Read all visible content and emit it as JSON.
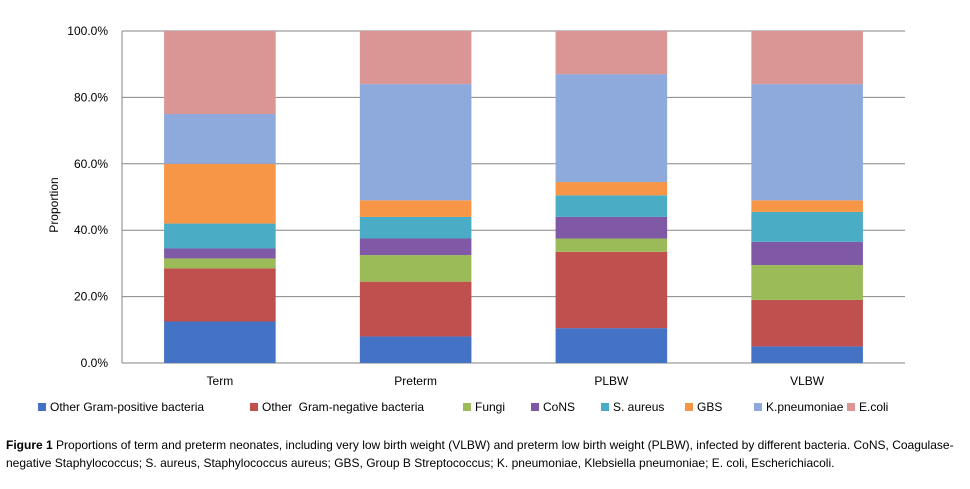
{
  "chart_data": {
    "type": "bar",
    "stacked": true,
    "categories": [
      "Term",
      "Preterm",
      "PLBW",
      "VLBW"
    ],
    "series": [
      {
        "name": "Other Gram-positive bacteria",
        "color": "#4472C4",
        "values": [
          12.5,
          8.0,
          10.5,
          5.0
        ]
      },
      {
        "name": "Other  Gram-negative bacteria",
        "color": "#C0504D",
        "values": [
          16.0,
          16.5,
          23.0,
          14.0
        ]
      },
      {
        "name": "Fungi",
        "color": "#9BBB59",
        "values": [
          3.0,
          8.0,
          4.0,
          10.5
        ]
      },
      {
        "name": "CoNS",
        "color": "#7F58A6",
        "values": [
          3.0,
          5.0,
          6.5,
          7.0
        ]
      },
      {
        "name": "S. aureus",
        "color": "#4BACC6",
        "values": [
          7.5,
          6.5,
          6.5,
          9.0
        ]
      },
      {
        "name": "GBS",
        "color": "#F79646",
        "values": [
          18.0,
          5.0,
          4.0,
          3.5
        ]
      },
      {
        "name": "K.pneumoniae",
        "color": "#8EA9DB",
        "values": [
          15.0,
          35.0,
          32.5,
          35.0
        ]
      },
      {
        "name": "E.coli",
        "color": "#D99694",
        "values": [
          25.0,
          16.0,
          13.0,
          16.0
        ]
      }
    ],
    "ylabel": "Proportion",
    "xlabel": "",
    "ylim": [
      0,
      100
    ],
    "yticks": [
      "0.0%",
      "20.0%",
      "40.0%",
      "60.0%",
      "80.0%",
      "100.0%"
    ],
    "grid": true,
    "legend_position": "bottom"
  },
  "caption": {
    "label": "Figure 1",
    "text": "Proportions of term and preterm neonates, including very low birth weight (VLBW) and preterm low birth weight (PLBW), infected by different bacteria. CoNS, Coagulase-negative Staphylococcus; S. aureus, Staphylococcus aureus; GBS, Group B Streptococcus; K. pneumoniae, Klebsiella pneumoniae; E. coli, Escherichiacoli."
  }
}
